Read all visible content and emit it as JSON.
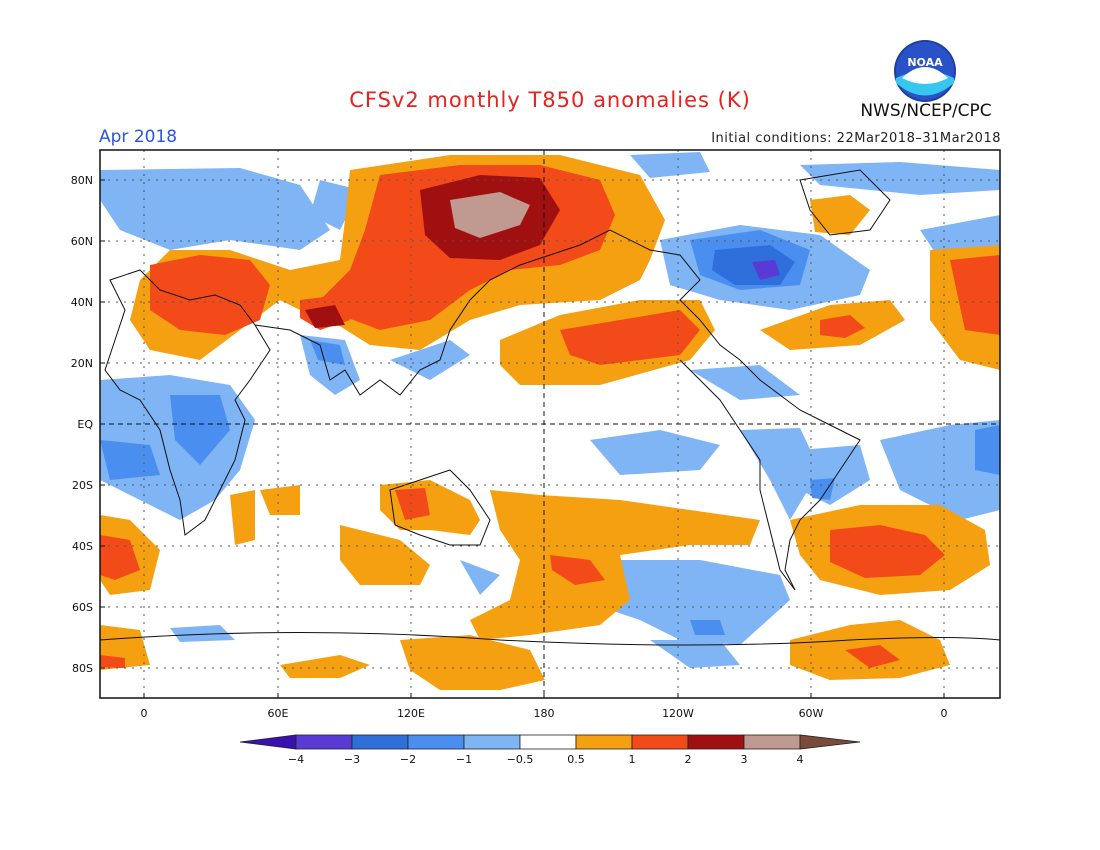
{
  "header": {
    "title": "CFSv2 monthly T850 anomalies (K)",
    "period": "Apr 2018",
    "initial_conditions": "Initial conditions: 22Mar2018–31Mar2018",
    "agency": "NWS/NCEP/CPC",
    "logo_text": "NOAA"
  },
  "map": {
    "lat_labels": [
      "80N",
      "60N",
      "40N",
      "20N",
      "EQ",
      "20S",
      "40S",
      "60S",
      "80S"
    ],
    "lon_labels": [
      "0",
      "60E",
      "120E",
      "180",
      "120W",
      "60W",
      "0"
    ]
  },
  "colorbar": {
    "labels": [
      "−4",
      "−3",
      "−2",
      "−1",
      "−0.5",
      "0.5",
      "1",
      "2",
      "3",
      "4"
    ],
    "colors": [
      "#3a10b0",
      "#5a3ad4",
      "#2f6fdb",
      "#4a8ff0",
      "#7fb4f5",
      "#ffffff",
      "#f5a010",
      "#f24a18",
      "#a01010",
      "#c09a90",
      "#7a4a3a"
    ]
  }
}
